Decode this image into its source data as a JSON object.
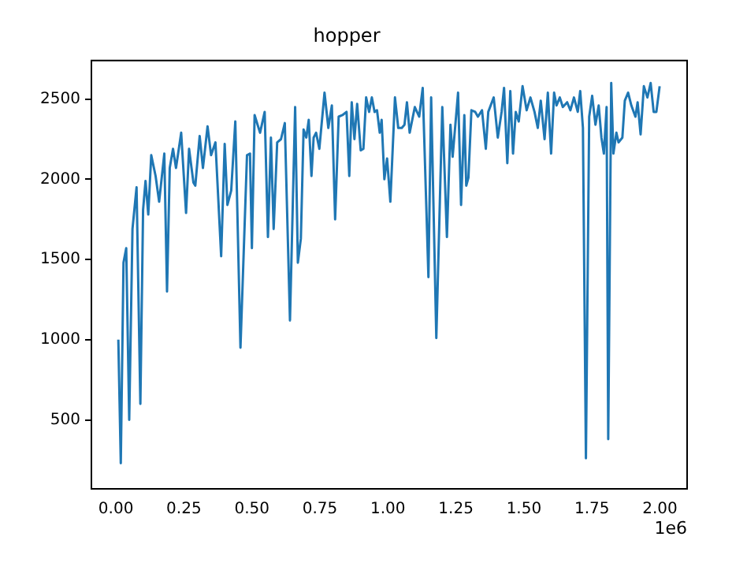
{
  "chart_data": {
    "type": "line",
    "title": "hopper",
    "x": [
      0.009,
      0.018,
      0.028,
      0.038,
      0.049,
      0.061,
      0.076,
      0.09,
      0.1,
      0.109,
      0.119,
      0.13,
      0.146,
      0.159,
      0.178,
      0.188,
      0.198,
      0.21,
      0.221,
      0.24,
      0.258,
      0.269,
      0.285,
      0.292,
      0.308,
      0.32,
      0.337,
      0.35,
      0.366,
      0.387,
      0.4,
      0.41,
      0.424,
      0.439,
      0.458,
      0.482,
      0.493,
      0.5,
      0.51,
      0.53,
      0.547,
      0.559,
      0.57,
      0.58,
      0.593,
      0.607,
      0.621,
      0.64,
      0.659,
      0.669,
      0.68,
      0.69,
      0.7,
      0.709,
      0.719,
      0.727,
      0.736,
      0.748,
      0.767,
      0.781,
      0.794,
      0.806,
      0.819,
      0.833,
      0.848,
      0.858,
      0.867,
      0.877,
      0.887,
      0.9,
      0.91,
      0.92,
      0.931,
      0.941,
      0.951,
      0.96,
      0.97,
      0.977,
      0.987,
      0.997,
      1.009,
      1.026,
      1.038,
      1.051,
      1.061,
      1.07,
      1.08,
      1.099,
      1.115,
      1.128,
      1.149,
      1.159,
      1.178,
      1.2,
      1.217,
      1.23,
      1.238,
      1.258,
      1.269,
      1.281,
      1.288,
      1.296,
      1.307,
      1.321,
      1.331,
      1.346,
      1.36,
      1.369,
      1.389,
      1.404,
      1.418,
      1.427,
      1.439,
      1.45,
      1.46,
      1.47,
      1.481,
      1.495,
      1.51,
      1.524,
      1.539,
      1.551,
      1.562,
      1.576,
      1.588,
      1.6,
      1.611,
      1.62,
      1.632,
      1.643,
      1.659,
      1.671,
      1.684,
      1.698,
      1.707,
      1.717,
      1.728,
      1.74,
      1.751,
      1.763,
      1.775,
      1.785,
      1.794,
      1.804,
      1.81,
      1.821,
      1.829,
      1.84,
      1.848,
      1.862,
      1.871,
      1.883,
      1.895,
      1.91,
      1.918,
      1.929,
      1.941,
      1.954,
      1.966,
      1.977,
      1.987,
      1.999
    ],
    "series": [
      {
        "color": "#1f77b4",
        "values": [
          1000,
          230,
          1480,
          1570,
          500,
          1690,
          1950,
          600,
          1810,
          1990,
          1780,
          2150,
          2020,
          1860,
          2160,
          1300,
          2070,
          2190,
          2070,
          2290,
          1790,
          2190,
          1980,
          1960,
          2270,
          2070,
          2330,
          2150,
          2230,
          1520,
          2220,
          1840,
          1930,
          2360,
          950,
          2150,
          2160,
          1570,
          2400,
          2290,
          2420,
          1640,
          2260,
          1690,
          2230,
          2250,
          2350,
          1120,
          2450,
          1480,
          1630,
          2310,
          2260,
          2370,
          2020,
          2260,
          2290,
          2190,
          2540,
          2320,
          2460,
          1750,
          2390,
          2400,
          2420,
          2020,
          2480,
          2250,
          2470,
          2180,
          2190,
          2510,
          2420,
          2510,
          2420,
          2430,
          2290,
          2370,
          2000,
          2130,
          1860,
          2510,
          2320,
          2320,
          2340,
          2480,
          2290,
          2450,
          2390,
          2570,
          1390,
          2510,
          1010,
          2450,
          1640,
          2340,
          2140,
          2540,
          1840,
          2400,
          1960,
          2010,
          2430,
          2420,
          2390,
          2430,
          2190,
          2420,
          2510,
          2260,
          2420,
          2570,
          2100,
          2550,
          2160,
          2420,
          2360,
          2580,
          2430,
          2510,
          2420,
          2320,
          2490,
          2250,
          2540,
          2160,
          2540,
          2460,
          2510,
          2450,
          2480,
          2430,
          2510,
          2420,
          2550,
          2320,
          260,
          2390,
          2520,
          2340,
          2460,
          2260,
          2160,
          2450,
          380,
          2600,
          2160,
          2290,
          2230,
          2260,
          2490,
          2540,
          2460,
          2390,
          2480,
          2280,
          2580,
          2510,
          2600,
          2420,
          2420,
          2580
        ]
      }
    ],
    "xlim": [
      -0.09,
      2.1
    ],
    "xticks": [
      {
        "value": 0,
        "label": "0.00"
      },
      {
        "value": 0.25,
        "label": "0.25"
      },
      {
        "value": 0.5,
        "label": "0.50"
      },
      {
        "value": 0.75,
        "label": "0.75"
      },
      {
        "value": 1,
        "label": "1.00"
      },
      {
        "value": 1.25,
        "label": "1.25"
      },
      {
        "value": 1.5,
        "label": "1.50"
      },
      {
        "value": 1.75,
        "label": "1.75"
      },
      {
        "value": 2,
        "label": "2.00"
      }
    ],
    "ylim": [
      70,
      2740
    ],
    "yticks": [
      500,
      1000,
      1500,
      2000,
      2500
    ],
    "annotations": [
      "1e6"
    ],
    "grid": false,
    "legend": false,
    "marker": "none",
    "line_style": "solid"
  }
}
